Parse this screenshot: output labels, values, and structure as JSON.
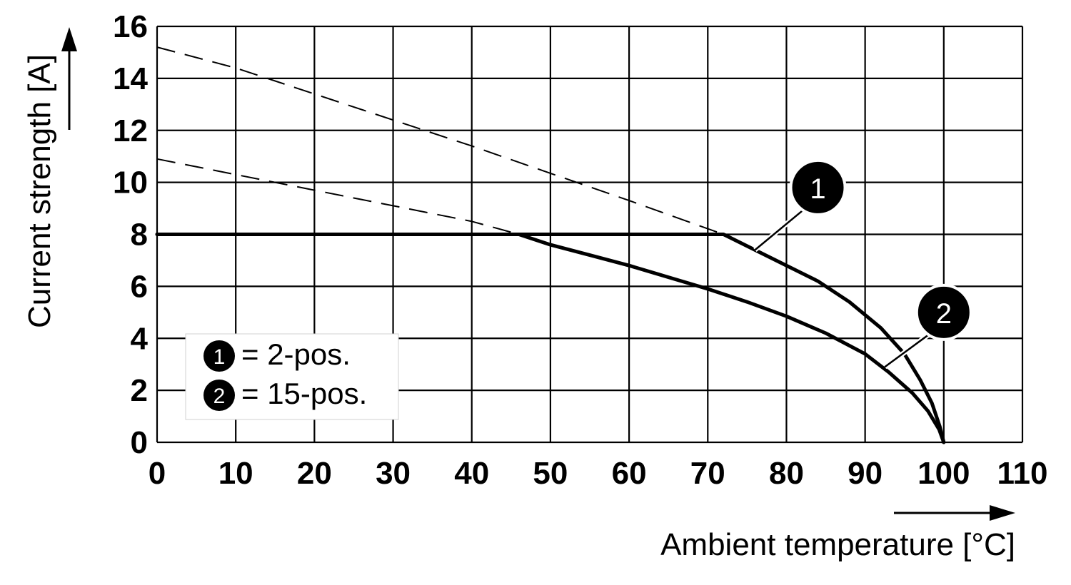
{
  "chart_data": {
    "type": "line",
    "xlabel": "Ambient temperature [°C]",
    "ylabel": "Current strength [A]",
    "xlim": [
      0,
      110
    ],
    "ylim": [
      0,
      16
    ],
    "x_ticks": [
      0,
      10,
      20,
      30,
      40,
      50,
      60,
      70,
      80,
      90,
      100,
      110
    ],
    "y_ticks": [
      0,
      2,
      4,
      6,
      8,
      10,
      12,
      14,
      16
    ],
    "grid": true,
    "legend_position": "bottom-left",
    "legend": [
      {
        "marker": "1",
        "label": "= 2-pos."
      },
      {
        "marker": "2",
        "label": "= 15-pos."
      }
    ],
    "series": [
      {
        "name": "1",
        "style": "solid",
        "points": [
          [
            0,
            8
          ],
          [
            72,
            8
          ],
          [
            76,
            7.4
          ],
          [
            80,
            6.8
          ],
          [
            84,
            6.2
          ],
          [
            88,
            5.4
          ],
          [
            92,
            4.4
          ],
          [
            95,
            3.4
          ],
          [
            97,
            2.4
          ],
          [
            98.5,
            1.5
          ],
          [
            99.5,
            0.6
          ],
          [
            100,
            0
          ]
        ]
      },
      {
        "name": "2",
        "style": "solid",
        "points": [
          [
            0,
            8
          ],
          [
            46,
            8
          ],
          [
            50,
            7.6
          ],
          [
            55,
            7.2
          ],
          [
            60,
            6.8
          ],
          [
            65,
            6.35
          ],
          [
            70,
            5.9
          ],
          [
            75,
            5.4
          ],
          [
            80,
            4.85
          ],
          [
            85,
            4.2
          ],
          [
            90,
            3.4
          ],
          [
            93,
            2.7
          ],
          [
            96,
            1.9
          ],
          [
            98,
            1.2
          ],
          [
            99.4,
            0.5
          ],
          [
            100,
            0
          ]
        ]
      },
      {
        "name": "1",
        "style": "dashed",
        "points": [
          [
            0,
            15.2
          ],
          [
            10,
            14.4
          ],
          [
            20,
            13.4
          ],
          [
            30,
            12.4
          ],
          [
            40,
            11.4
          ],
          [
            50,
            10.35
          ],
          [
            60,
            9.3
          ],
          [
            72,
            8
          ]
        ]
      },
      {
        "name": "2",
        "style": "dashed",
        "points": [
          [
            0,
            10.9
          ],
          [
            10,
            10.3
          ],
          [
            20,
            9.7
          ],
          [
            30,
            9.1
          ],
          [
            40,
            8.5
          ],
          [
            46,
            8
          ]
        ]
      }
    ],
    "annotations": [
      {
        "label": "1",
        "target": [
          76,
          7.4
        ],
        "bubble": [
          84,
          9.8
        ]
      },
      {
        "label": "2",
        "target": [
          92.5,
          2.9
        ],
        "bubble": [
          100,
          5.0
        ]
      }
    ]
  }
}
